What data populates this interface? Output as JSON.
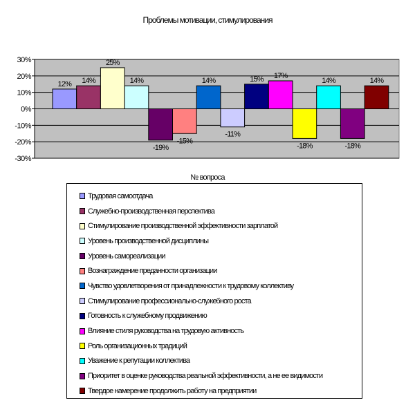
{
  "chart_data": {
    "type": "bar",
    "title": "Проблемы мотивации, стимулирования",
    "xlabel": "№ вопроса",
    "ylabel": "",
    "ylim": [
      -30,
      30
    ],
    "yticks": [
      "30%",
      "20%",
      "10%",
      "0%",
      "-10%",
      "-20%",
      "-30%"
    ],
    "grid": true,
    "legend_position": "bottom",
    "series": [
      {
        "name": "Трудовая самоотдача",
        "value": 12,
        "label": "12%",
        "color": "#9999ff"
      },
      {
        "name": "Служебно-производственная перспектива",
        "value": 14,
        "label": "14%",
        "color": "#993366"
      },
      {
        "name": "Стимулирование производственной эффективности зарплатой",
        "value": 25,
        "label": "25%",
        "color": "#ffffcc"
      },
      {
        "name": "Уровень производственной дисциплины",
        "value": 14,
        "label": "14%",
        "color": "#ccffff"
      },
      {
        "name": "Уровень самореализации",
        "value": -19,
        "label": "-19%",
        "color": "#660066"
      },
      {
        "name": "Вознаграждение преданности организации",
        "value": -15,
        "label": "-15%",
        "color": "#ff8080"
      },
      {
        "name": "Чувство удовлетворения от принадлежности к трудовому коллективу",
        "value": 14,
        "label": "14%",
        "color": "#0066cc"
      },
      {
        "name": "Стимулирование профессионально-служебного роста",
        "value": -11,
        "label": "-11%",
        "color": "#ccccff"
      },
      {
        "name": "Готовность к служебному продвижению",
        "value": 15,
        "label": "15%",
        "color": "#000080"
      },
      {
        "name": "Влияние стиля руководства на трудовую активность",
        "value": 17,
        "label": "17%",
        "color": "#ff00ff"
      },
      {
        "name": "Роль организационных традиций",
        "value": -18,
        "label": "-18%",
        "color": "#ffff00"
      },
      {
        "name": "Уважение к репутации коллектива",
        "value": 14,
        "label": "14%",
        "color": "#00ffff"
      },
      {
        "name": "Приоритет в оценке руководства реальной эффективности, а не ее видимости",
        "value": -18,
        "label": "-18%",
        "color": "#800080"
      },
      {
        "name": "Твердое намерение продолжить работу на предприятии",
        "value": 14,
        "label": "14%",
        "color": "#800000"
      }
    ]
  }
}
